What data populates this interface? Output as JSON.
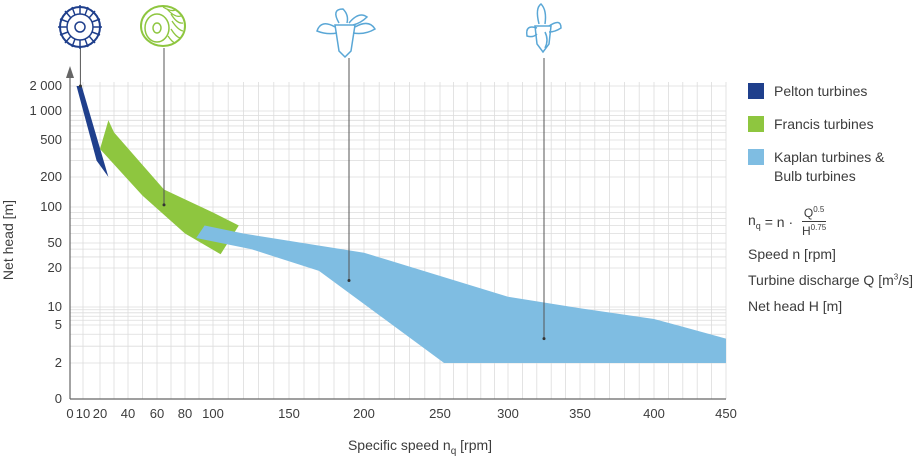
{
  "chart_data": {
    "type": "area",
    "xlabel": "Specific speed n_q [rpm]",
    "ylabel": "Net head [m]",
    "xlim": [
      0,
      450
    ],
    "x_ticks": [
      0,
      10,
      20,
      40,
      60,
      80,
      100,
      150,
      200,
      250,
      300,
      350,
      400,
      450
    ],
    "y_ticks": [
      "0",
      "2",
      "5",
      "10",
      "20",
      "50",
      "100",
      "200",
      "500",
      "1 000",
      "2 000"
    ],
    "y_scale": "logarithmic",
    "grid": true,
    "legend_position": "right",
    "series": [
      {
        "name": "Pelton turbines",
        "color": "#1f3f8c",
        "polygon": [
          [
            5,
            2000
          ],
          [
            9,
            2000
          ],
          [
            26,
            200
          ],
          [
            18,
            300
          ]
        ]
      },
      {
        "name": "Francis turbines",
        "color": "#8ec63f",
        "polygon": [
          [
            26,
            800
          ],
          [
            30,
            600
          ],
          [
            65,
            150
          ],
          [
            100,
            90
          ],
          [
            117,
            70
          ],
          [
            105,
            33
          ],
          [
            80,
            60
          ],
          [
            50,
            130
          ],
          [
            20,
            400
          ]
        ]
      },
      {
        "name": "Kaplan turbines & Bulb turbines",
        "color": "#7fbde2",
        "polygon": [
          [
            94,
            70
          ],
          [
            120,
            60
          ],
          [
            200,
            35
          ],
          [
            300,
            12
          ],
          [
            350,
            9.5
          ],
          [
            400,
            6.3
          ],
          [
            420,
            4.8
          ],
          [
            450,
            3.6
          ],
          [
            450,
            2
          ],
          [
            253,
            2
          ],
          [
            170,
            19
          ],
          [
            125,
            40
          ],
          [
            88,
            55
          ]
        ]
      }
    ],
    "indicator_lines": [
      {
        "name": "Pelton",
        "x": 8,
        "y": 2000
      },
      {
        "name": "Francis",
        "x": 65,
        "y": 105
      },
      {
        "name": "Kaplan",
        "x": 190,
        "y": 16
      },
      {
        "name": "Bulb",
        "x": 325,
        "y": 3.6
      }
    ]
  },
  "legend": [
    {
      "label": "Pelton turbines",
      "color": "#1f3f8c"
    },
    {
      "label": "Francis turbines",
      "color": "#8ec63f"
    },
    {
      "label": "Kaplan turbines &\nBulb turbines",
      "color": "#7fbde2"
    }
  ],
  "formula": {
    "lhs": "n",
    "lhs_sub": "q",
    "eq": " = n · ",
    "num": "Q",
    "num_sup": "0.5",
    "den": "H",
    "den_sup": "0.75"
  },
  "notes": {
    "speed": "Speed n [rpm]",
    "discharge": "Turbine discharge Q [m",
    "discharge_sup": "3",
    "discharge_end": "/s]",
    "head": "Net head H [m]"
  },
  "icons": [
    "pelton-runner-icon",
    "francis-runner-icon",
    "kaplan-runner-icon",
    "bulb-runner-icon"
  ],
  "icon_colors": {
    "pelton": "#1f3f8c",
    "francis": "#8ec63f",
    "kaplan": "#5aa7d6"
  }
}
